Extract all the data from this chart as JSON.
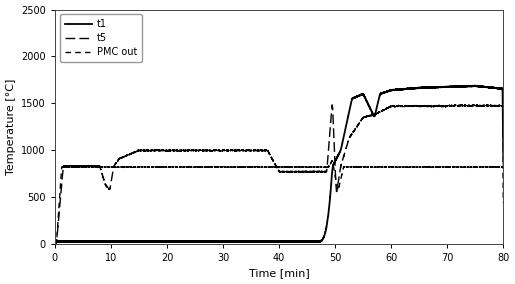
{
  "xlabel": "Time [min]",
  "ylabel": "Temperature [°C]",
  "xlim": [
    0,
    80
  ],
  "ylim": [
    0,
    2500
  ],
  "yticks": [
    0,
    500,
    1000,
    1500,
    2000,
    2500
  ],
  "xticks": [
    0,
    10,
    20,
    30,
    40,
    50,
    60,
    70,
    80
  ],
  "legend_labels": [
    "t1",
    "t5",
    "PMC out"
  ],
  "background_color": "#ffffff",
  "line_color": "#000000",
  "t1_lw": 1.3,
  "t5_lw": 1.0,
  "pmc_lw": 1.0,
  "font_size_tick": 7,
  "font_size_label": 8,
  "font_size_legend": 7
}
